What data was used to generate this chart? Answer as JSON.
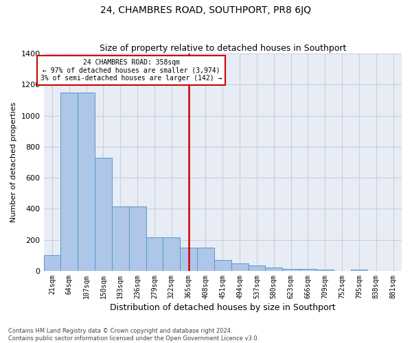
{
  "title": "24, CHAMBRES ROAD, SOUTHPORT, PR8 6JQ",
  "subtitle": "Size of property relative to detached houses in Southport",
  "xlabel": "Distribution of detached houses by size in Southport",
  "ylabel": "Number of detached properties",
  "footer_line1": "Contains HM Land Registry data © Crown copyright and database right 2024.",
  "footer_line2": "Contains public sector information licensed under the Open Government Licence v3.0.",
  "categories": [
    "21sqm",
    "64sqm",
    "107sqm",
    "150sqm",
    "193sqm",
    "236sqm",
    "279sqm",
    "322sqm",
    "365sqm",
    "408sqm",
    "451sqm",
    "494sqm",
    "537sqm",
    "580sqm",
    "623sqm",
    "666sqm",
    "709sqm",
    "752sqm",
    "795sqm",
    "838sqm",
    "881sqm"
  ],
  "values": [
    100,
    1150,
    1150,
    730,
    415,
    415,
    215,
    215,
    150,
    150,
    70,
    50,
    35,
    20,
    15,
    15,
    10,
    0,
    10,
    0,
    0
  ],
  "bar_color": "#aec6e8",
  "bar_edge_color": "#5599cc",
  "grid_color": "#c8d0e0",
  "background_color": "#e8ecf4",
  "vline_color": "#cc0000",
  "vline_x_index": 8,
  "annotation_line1": "24 CHAMBRES ROAD: 358sqm",
  "annotation_line2": "← 97% of detached houses are smaller (3,974)",
  "annotation_line3": "3% of semi-detached houses are larger (142) →",
  "annotation_box_edgecolor": "#cc0000",
  "annotation_box_facecolor": "#ffffff",
  "ylim": [
    0,
    1400
  ],
  "yticks": [
    0,
    200,
    400,
    600,
    800,
    1000,
    1200,
    1400
  ],
  "title_fontsize": 10,
  "subtitle_fontsize": 9,
  "ylabel_fontsize": 8,
  "xlabel_fontsize": 9,
  "tick_fontsize": 7,
  "annotation_fontsize": 7,
  "footer_fontsize": 6
}
